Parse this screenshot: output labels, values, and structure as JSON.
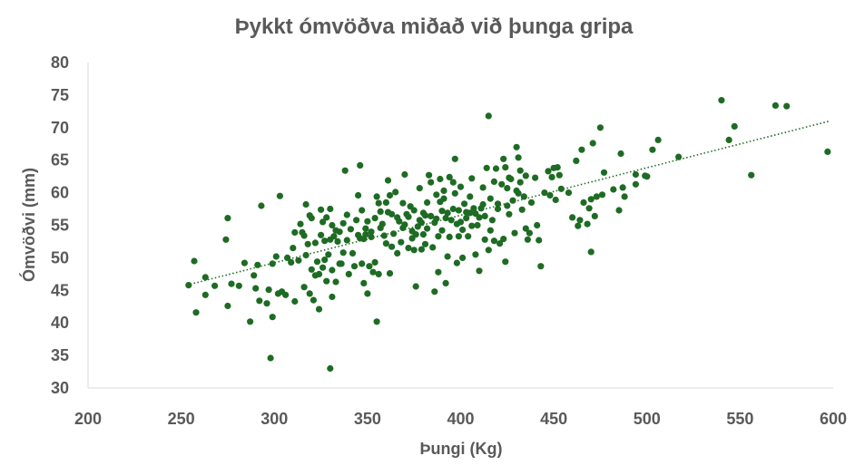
{
  "chart_data": {
    "type": "scatter",
    "title": "Þykkt ómvöðva miðað við þunga gripa",
    "xlabel": "Þungi (Kg)",
    "ylabel": "Ómvöðvi (mm)",
    "xlim": [
      200,
      600
    ],
    "ylim": [
      30,
      80
    ],
    "xticks": [
      "200",
      "250",
      "300",
      "350",
      "400",
      "450",
      "500",
      "550",
      "600"
    ],
    "yticks": [
      "30",
      "35",
      "40",
      "45",
      "50",
      "55",
      "60",
      "65",
      "70",
      "75",
      "80"
    ],
    "grid": false,
    "legend": "none",
    "marker_color": "#1e6b23",
    "trendline": {
      "type": "linear",
      "style": "dotted",
      "color": "#1e6b23",
      "from": [
        253,
        45.8
      ],
      "to": [
        598,
        71
      ]
    },
    "points": [
      [
        254,
        45.8
      ],
      [
        257,
        49.5
      ],
      [
        258,
        41.6
      ],
      [
        263,
        44.3
      ],
      [
        263,
        47
      ],
      [
        268,
        45.7
      ],
      [
        274,
        52.8
      ],
      [
        275,
        56.1
      ],
      [
        275,
        42.6
      ],
      [
        277,
        46
      ],
      [
        281,
        45.7
      ],
      [
        284,
        49.2
      ],
      [
        287,
        40.2
      ],
      [
        289,
        47.3
      ],
      [
        290,
        45.3
      ],
      [
        291,
        48.9
      ],
      [
        292,
        43.4
      ],
      [
        293,
        58
      ],
      [
        296,
        43
      ],
      [
        297,
        45.1
      ],
      [
        298,
        34.6
      ],
      [
        299,
        40.9
      ],
      [
        299,
        49.1
      ],
      [
        301,
        50.2
      ],
      [
        302,
        44.5
      ],
      [
        303,
        59.5
      ],
      [
        304,
        44.8
      ],
      [
        306,
        44.3
      ],
      [
        307,
        50
      ],
      [
        309,
        49.3
      ],
      [
        310,
        51.5
      ],
      [
        311,
        53.9
      ],
      [
        311,
        43.3
      ],
      [
        313,
        49.6
      ],
      [
        314,
        55.2
      ],
      [
        315,
        53.9
      ],
      [
        316,
        53.4
      ],
      [
        316,
        45.5
      ],
      [
        317,
        50.4
      ],
      [
        317,
        58.2
      ],
      [
        318,
        52.1
      ],
      [
        319,
        56.5
      ],
      [
        319,
        44.5
      ],
      [
        320,
        48.2
      ],
      [
        320,
        56.1
      ],
      [
        321,
        43.5
      ],
      [
        322,
        52.3
      ],
      [
        322,
        47.3
      ],
      [
        323,
        49.4
      ],
      [
        324,
        47.5
      ],
      [
        324,
        42.1
      ],
      [
        325,
        57.4
      ],
      [
        325,
        53.5
      ],
      [
        326,
        55.5
      ],
      [
        326,
        48.5
      ],
      [
        327,
        52.6
      ],
      [
        327,
        49.7
      ],
      [
        328,
        46.4
      ],
      [
        328,
        56.2
      ],
      [
        329,
        50.5
      ],
      [
        330,
        33
      ],
      [
        330,
        57.5
      ],
      [
        330,
        52.8
      ],
      [
        331,
        55
      ],
      [
        331,
        48.1
      ],
      [
        331,
        44
      ],
      [
        332,
        53.3
      ],
      [
        333,
        54.2
      ],
      [
        333,
        46.3
      ],
      [
        334,
        52.5
      ],
      [
        335,
        54
      ],
      [
        335,
        49.1
      ],
      [
        336,
        49.1
      ],
      [
        337,
        50.8
      ],
      [
        337,
        55.3
      ],
      [
        338,
        63.4
      ],
      [
        339,
        52.7
      ],
      [
        339,
        56.6
      ],
      [
        340,
        47.5
      ],
      [
        341,
        54.4
      ],
      [
        342,
        50.7
      ],
      [
        343,
        48.7
      ],
      [
        344,
        55.8
      ],
      [
        345,
        53.5
      ],
      [
        345,
        59.6
      ],
      [
        346,
        64.2
      ],
      [
        346,
        53
      ],
      [
        347,
        57.3
      ],
      [
        347,
        49.1
      ],
      [
        348,
        52.9
      ],
      [
        348,
        46.1
      ],
      [
        349,
        54.5
      ],
      [
        349,
        53.6
      ],
      [
        350,
        55.6
      ],
      [
        350,
        44.5
      ],
      [
        351,
        48.7
      ],
      [
        352,
        54
      ],
      [
        352,
        53.2
      ],
      [
        353,
        47.8
      ],
      [
        354,
        56.1
      ],
      [
        354,
        49.3
      ],
      [
        355,
        59.4
      ],
      [
        355,
        40.2
      ],
      [
        356,
        58.4
      ],
      [
        356,
        47.5
      ],
      [
        357,
        54.6
      ],
      [
        357,
        57.1
      ],
      [
        358,
        55.2
      ],
      [
        359,
        53.4
      ],
      [
        360,
        52.2
      ],
      [
        360,
        58.5
      ],
      [
        361,
        61.9
      ],
      [
        361,
        57
      ],
      [
        362,
        59.6
      ],
      [
        362,
        47.6
      ],
      [
        363,
        56.7
      ],
      [
        363,
        51.7
      ],
      [
        364,
        53.7
      ],
      [
        365,
        60.1
      ],
      [
        366,
        56.2
      ],
      [
        366,
        50.7
      ],
      [
        367,
        55.6
      ],
      [
        368,
        52.4
      ],
      [
        369,
        58.4
      ],
      [
        369,
        54.6
      ],
      [
        370,
        55.1
      ],
      [
        370,
        62.8
      ],
      [
        371,
        56.7
      ],
      [
        372,
        56.3
      ],
      [
        372,
        51.5
      ],
      [
        373,
        57.9
      ],
      [
        374,
        54.1
      ],
      [
        374,
        53
      ],
      [
        375,
        51.2
      ],
      [
        375,
        57.3
      ],
      [
        376,
        53.6
      ],
      [
        376,
        45.6
      ],
      [
        377,
        54.8
      ],
      [
        378,
        55.8
      ],
      [
        378,
        60.7
      ],
      [
        379,
        55.4
      ],
      [
        379,
        51.3
      ],
      [
        380,
        56.9
      ],
      [
        380,
        53.6
      ],
      [
        381,
        56.5
      ],
      [
        381,
        52.1
      ],
      [
        382,
        58.5
      ],
      [
        382,
        54.5
      ],
      [
        383,
        62.7
      ],
      [
        384,
        56.4
      ],
      [
        384,
        61.6
      ],
      [
        385,
        51.6
      ],
      [
        386,
        55.4
      ],
      [
        386,
        44.8
      ],
      [
        387,
        59.7
      ],
      [
        387,
        56
      ],
      [
        388,
        53.3
      ],
      [
        388,
        47.8
      ],
      [
        389,
        58.6
      ],
      [
        389,
        62.1
      ],
      [
        390,
        57.2
      ],
      [
        390,
        54.2
      ],
      [
        391,
        59.1
      ],
      [
        391,
        60.3
      ],
      [
        392,
        56.1
      ],
      [
        392,
        46.1
      ],
      [
        393,
        56.9
      ],
      [
        393,
        50.2
      ],
      [
        394,
        53.2
      ],
      [
        394,
        62.4
      ],
      [
        395,
        55.8
      ],
      [
        396,
        57.5
      ],
      [
        396,
        61.6
      ],
      [
        397,
        59.9
      ],
      [
        397,
        65.2
      ],
      [
        398,
        55.2
      ],
      [
        398,
        49.2
      ],
      [
        399,
        57.3
      ],
      [
        399,
        53.3
      ],
      [
        400,
        60.9
      ],
      [
        400,
        55.5
      ],
      [
        401,
        54.3
      ],
      [
        401,
        50
      ],
      [
        402,
        58.3
      ],
      [
        403,
        56.1
      ],
      [
        403,
        57
      ],
      [
        404,
        53.3
      ],
      [
        405,
        59.4
      ],
      [
        405,
        56.9
      ],
      [
        406,
        54.9
      ],
      [
        406,
        62.2
      ],
      [
        407,
        57.6
      ],
      [
        408,
        56.8
      ],
      [
        408,
        50.5
      ],
      [
        409,
        55
      ],
      [
        410,
        56.2
      ],
      [
        410,
        48
      ],
      [
        411,
        57.6
      ],
      [
        412,
        60.8
      ],
      [
        412,
        58.2
      ],
      [
        413,
        52.8
      ],
      [
        413,
        56.4
      ],
      [
        414,
        63.8
      ],
      [
        415,
        71.8
      ],
      [
        415,
        51.2
      ],
      [
        416,
        59.1
      ],
      [
        416,
        54.2
      ],
      [
        417,
        55.8
      ],
      [
        418,
        52.6
      ],
      [
        418,
        61.7
      ],
      [
        419,
        63.7
      ],
      [
        420,
        58.3
      ],
      [
        420,
        57.5
      ],
      [
        421,
        52.2
      ],
      [
        422,
        61.3
      ],
      [
        423,
        52.9
      ],
      [
        423,
        65.2
      ],
      [
        424,
        49.4
      ],
      [
        424,
        63.9
      ],
      [
        425,
        58
      ],
      [
        425,
        60.7
      ],
      [
        426,
        56.7
      ],
      [
        426,
        62.3
      ],
      [
        427,
        62.1
      ],
      [
        428,
        58.8
      ],
      [
        429,
        53.8
      ],
      [
        430,
        67
      ],
      [
        430,
        60.3
      ],
      [
        431,
        65.4
      ],
      [
        431,
        59.9
      ],
      [
        432,
        63.4
      ],
      [
        432,
        61.6
      ],
      [
        433,
        57.4
      ],
      [
        434,
        59.4
      ],
      [
        435,
        54.5
      ],
      [
        435,
        62.6
      ],
      [
        436,
        52.8
      ],
      [
        437,
        53.8
      ],
      [
        438,
        58.5
      ],
      [
        440,
        62.3
      ],
      [
        441,
        55
      ],
      [
        442,
        52.7
      ],
      [
        443,
        48.7
      ],
      [
        445,
        60
      ],
      [
        447,
        63.3
      ],
      [
        448,
        59.6
      ],
      [
        449,
        62.4
      ],
      [
        450,
        63.8
      ],
      [
        451,
        58.9
      ],
      [
        452,
        63.9
      ],
      [
        453,
        62.7
      ],
      [
        454,
        60.6
      ],
      [
        458,
        60
      ],
      [
        460,
        56.2
      ],
      [
        462,
        64.9
      ],
      [
        463,
        54.9
      ],
      [
        464,
        55.8
      ],
      [
        465,
        66.6
      ],
      [
        466,
        58.5
      ],
      [
        468,
        55.2
      ],
      [
        469,
        57.6
      ],
      [
        470,
        50.9
      ],
      [
        470,
        59
      ],
      [
        471,
        67.6
      ],
      [
        472,
        56.4
      ],
      [
        473,
        59.4
      ],
      [
        475,
        70
      ],
      [
        476,
        59.7
      ],
      [
        477,
        63.1
      ],
      [
        482,
        60.5
      ],
      [
        485,
        57.3
      ],
      [
        486,
        66
      ],
      [
        487,
        60.8
      ],
      [
        488,
        59.4
      ],
      [
        494,
        61.3
      ],
      [
        494,
        62.8
      ],
      [
        499,
        62.6
      ],
      [
        500,
        62.5
      ],
      [
        503,
        66.6
      ],
      [
        506,
        68.1
      ],
      [
        517,
        65.5
      ],
      [
        540,
        74.2
      ],
      [
        544,
        68.1
      ],
      [
        547,
        70.2
      ],
      [
        556,
        62.7
      ],
      [
        569,
        73.4
      ],
      [
        575,
        73.3
      ],
      [
        597,
        66.3
      ]
    ]
  }
}
